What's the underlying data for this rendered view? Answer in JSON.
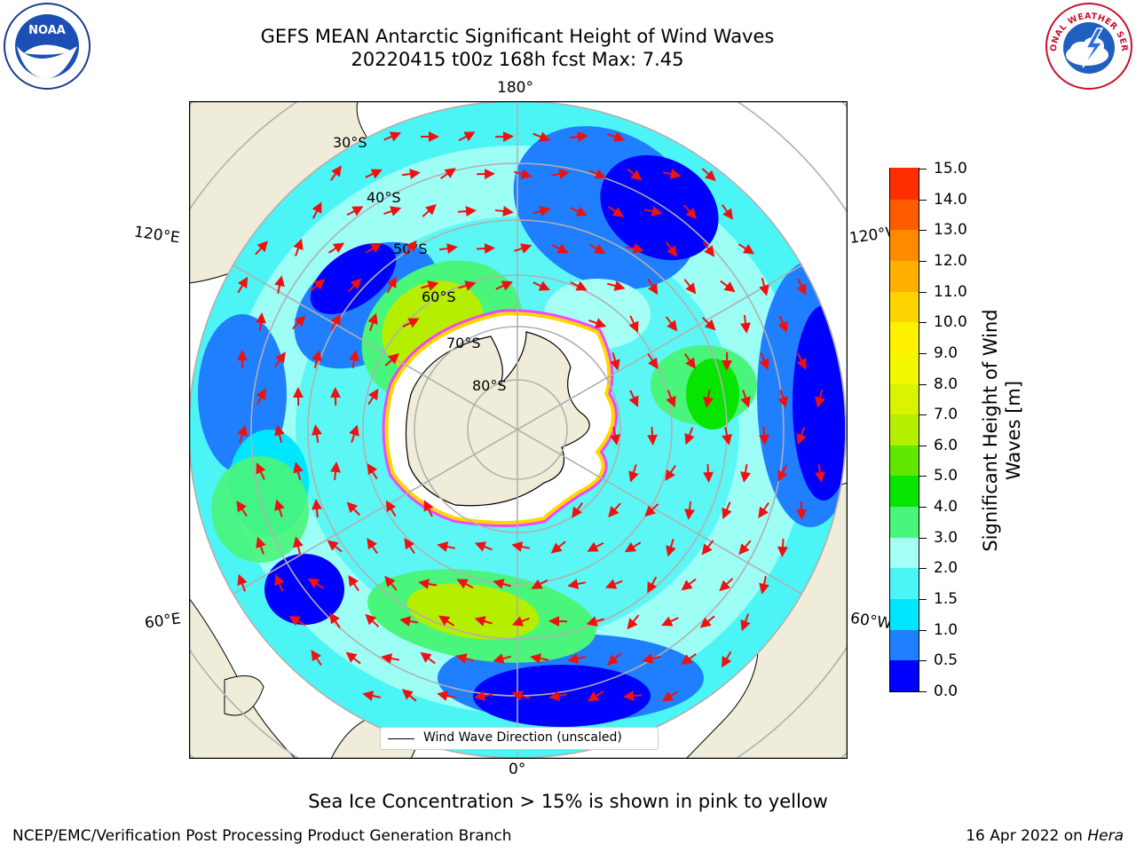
{
  "header": {
    "title_line1": "GEFS MEAN Antarctic Significant Height of Wind Waves",
    "title_line2": "20220415 t00z 168h fcst   Max: 7.45"
  },
  "logos": {
    "left": {
      "text": "NOAA",
      "icon": "noaa-logo-icon"
    },
    "right": {
      "text": "NATIONAL WEATHER SERVICE",
      "icon": "nws-logo-icon"
    }
  },
  "map": {
    "projection": "south-polar-stereographic",
    "longitude_labels": {
      "top": "180°",
      "bottom": "0°",
      "upper_left": "120°E",
      "lower_left": "60°E",
      "upper_right": "120°W",
      "lower_right": "60°W"
    },
    "latitude_labels": [
      "30°S",
      "40°S",
      "50°S",
      "60°S",
      "70°S",
      "80°S"
    ],
    "legend": {
      "label": "Wind Wave Direction (unscaled)"
    },
    "colors": {
      "land": "#efedd9",
      "ice_free_polar": "#ffffff",
      "arrow": "#ee1111",
      "ice_edge": [
        "#ff33ff",
        "#ffd700"
      ]
    }
  },
  "colorbar": {
    "title": "Significant Height of Wind Waves [m]",
    "title_line1": "Significant Height of Wind",
    "title_line2": "Waves [m]",
    "ticks": [
      "0.0",
      "0.5",
      "1.0",
      "1.5",
      "2.0",
      "3.0",
      "4.0",
      "5.0",
      "6.0",
      "7.0",
      "8.0",
      "9.0",
      "10.0",
      "11.0",
      "12.0",
      "13.0",
      "14.0",
      "15.0"
    ],
    "colors": [
      "#0000ff",
      "#1f7fff",
      "#00e6ff",
      "#4cf5f5",
      "#a6fff5",
      "#49f57a",
      "#05e500",
      "#60e800",
      "#b6ee00",
      "#d9f300",
      "#f3f800",
      "#fff200",
      "#ffd400",
      "#ffb000",
      "#ff8a00",
      "#ff5c00",
      "#ff2e00"
    ]
  },
  "footer": {
    "ice_note": "Sea Ice Concentration > 15% is shown in pink to yellow",
    "credit": "NCEP/EMC/Verification Post Processing Product Generation Branch",
    "date": "16 Apr 2022 on ",
    "machine": "Hera"
  }
}
